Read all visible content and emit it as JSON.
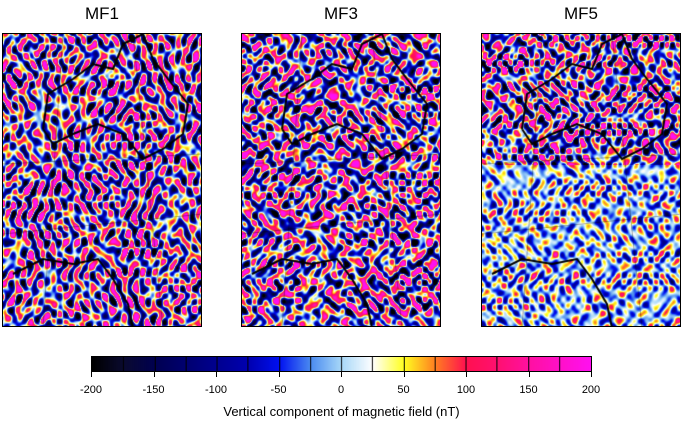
{
  "panels": [
    {
      "title": "MF1",
      "seed": 1,
      "south_strength": 1.0
    },
    {
      "title": "MF3",
      "seed": 2,
      "south_strength": 1.0
    },
    {
      "title": "MF5",
      "seed": 3,
      "south_strength": 0.45
    }
  ],
  "colorbar": {
    "ticks": [
      "-200",
      "-150",
      "-100",
      "-50",
      "0",
      "50",
      "100",
      "150",
      "200"
    ],
    "min": -200,
    "max": 200,
    "step": 25,
    "label": "Vertical component of magnetic field (nT)",
    "colors": [
      "#000000",
      "#0a0a30",
      "#000050",
      "#000070",
      "#000090",
      "#0000b0",
      "#0010f0",
      "#4a8af0",
      "#a8d8f8",
      "#ffffff",
      "#ffff20",
      "#ff8020",
      "#ff1050",
      "#ff1070",
      "#ff10a0",
      "#ff10c8",
      "#ff10f0"
    ]
  }
}
